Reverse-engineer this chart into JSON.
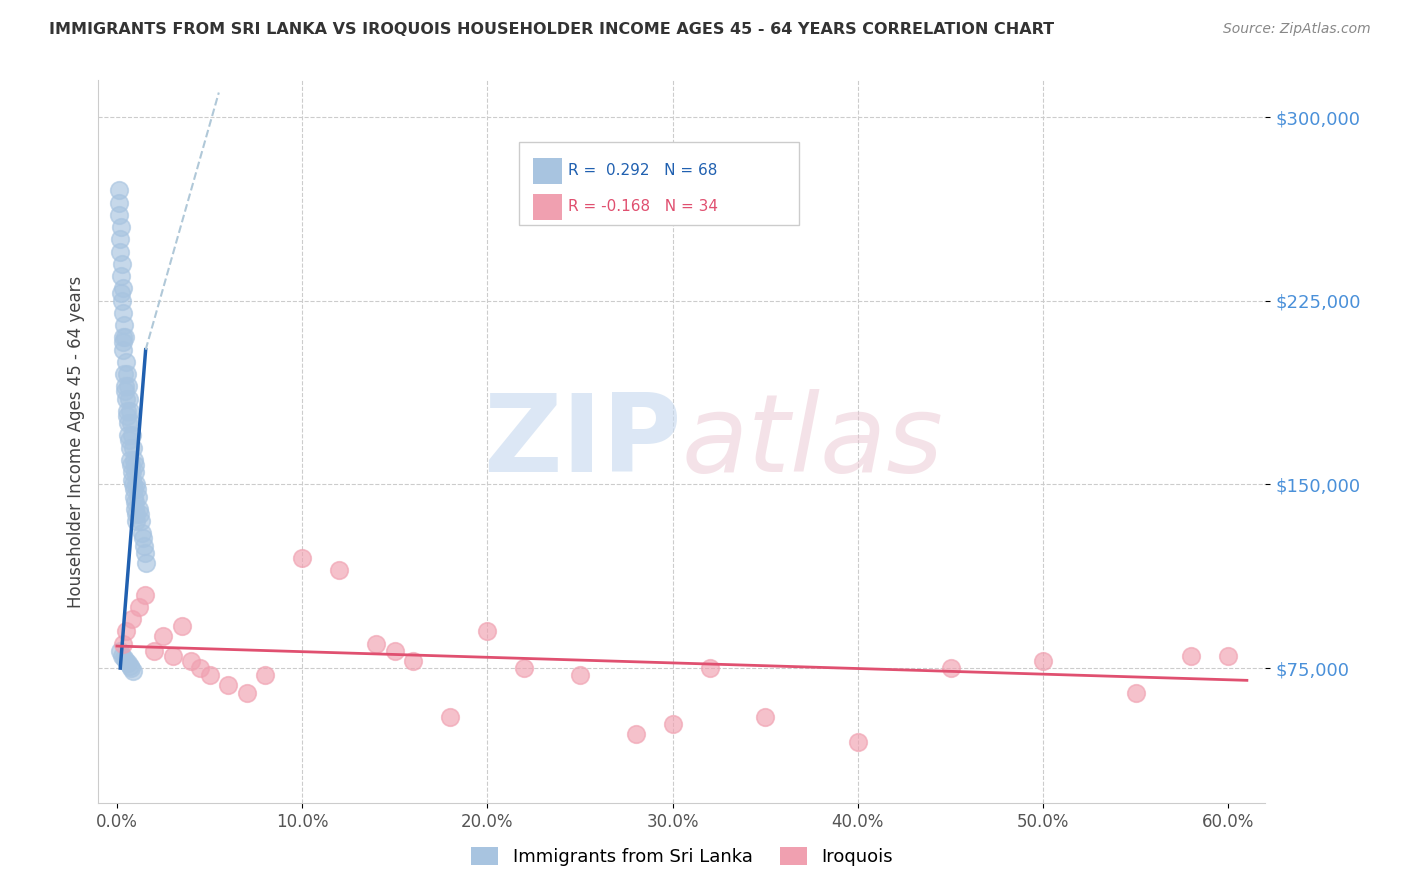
{
  "title": "IMMIGRANTS FROM SRI LANKA VS IROQUOIS HOUSEHOLDER INCOME AGES 45 - 64 YEARS CORRELATION CHART",
  "source": "Source: ZipAtlas.com",
  "ylabel": "Householder Income Ages 45 - 64 years",
  "xlabel_ticks": [
    "0.0%",
    "10.0%",
    "20.0%",
    "30.0%",
    "40.0%",
    "50.0%",
    "60.0%"
  ],
  "xlabel_vals": [
    0.0,
    10.0,
    20.0,
    30.0,
    40.0,
    50.0,
    60.0
  ],
  "yticks": [
    75000,
    150000,
    225000,
    300000
  ],
  "ytick_labels": [
    "$75,000",
    "$150,000",
    "$225,000",
    "$300,000"
  ],
  "xlim": [
    -1.0,
    62.0
  ],
  "ylim": [
    20000,
    315000
  ],
  "blue_R": 0.292,
  "blue_N": 68,
  "pink_R": -0.168,
  "pink_N": 34,
  "blue_color": "#a8c4e0",
  "blue_line_color": "#2060b0",
  "blue_dashed_color": "#a8c4e0",
  "pink_color": "#f0a0b0",
  "pink_line_color": "#e05070",
  "blue_scatter_x": [
    0.1,
    0.15,
    0.2,
    0.25,
    0.3,
    0.35,
    0.4,
    0.45,
    0.5,
    0.55,
    0.6,
    0.65,
    0.7,
    0.75,
    0.8,
    0.85,
    0.9,
    0.95,
    1.0,
    1.05,
    1.1,
    1.15,
    1.2,
    1.25,
    1.3,
    1.35,
    1.4,
    1.45,
    1.5,
    1.55,
    0.1,
    0.2,
    0.3,
    0.4,
    0.5,
    0.6,
    0.7,
    0.8,
    0.9,
    1.0,
    0.15,
    0.25,
    0.35,
    0.45,
    0.55,
    0.65,
    0.75,
    0.85,
    0.95,
    1.05,
    0.12,
    0.22,
    0.32,
    0.42,
    0.52,
    0.62,
    0.72,
    0.82,
    0.92,
    1.02,
    0.18,
    0.28,
    0.38,
    0.48,
    0.58,
    0.68,
    0.78,
    0.88
  ],
  "blue_scatter_y": [
    265000,
    245000,
    255000,
    240000,
    230000,
    220000,
    215000,
    210000,
    200000,
    195000,
    190000,
    185000,
    180000,
    175000,
    170000,
    165000,
    160000,
    158000,
    155000,
    150000,
    148000,
    145000,
    140000,
    138000,
    135000,
    130000,
    128000,
    125000,
    122000,
    118000,
    270000,
    235000,
    210000,
    195000,
    185000,
    175000,
    165000,
    155000,
    148000,
    140000,
    250000,
    225000,
    205000,
    188000,
    178000,
    168000,
    158000,
    150000,
    143000,
    135000,
    260000,
    228000,
    208000,
    190000,
    180000,
    170000,
    160000,
    152000,
    145000,
    138000,
    82000,
    80000,
    79000,
    78000,
    77000,
    76000,
    75000,
    74000
  ],
  "pink_scatter_x": [
    0.3,
    0.5,
    0.8,
    1.2,
    1.5,
    2.0,
    2.5,
    3.0,
    3.5,
    4.0,
    4.5,
    5.0,
    6.0,
    7.0,
    8.0,
    10.0,
    12.0,
    14.0,
    15.0,
    16.0,
    18.0,
    20.0,
    22.0,
    25.0,
    28.0,
    30.0,
    32.0,
    35.0,
    40.0,
    45.0,
    50.0,
    55.0,
    58.0,
    60.0
  ],
  "pink_scatter_y": [
    85000,
    90000,
    95000,
    100000,
    105000,
    82000,
    88000,
    80000,
    92000,
    78000,
    75000,
    72000,
    68000,
    65000,
    72000,
    120000,
    115000,
    85000,
    82000,
    78000,
    55000,
    90000,
    75000,
    72000,
    48000,
    52000,
    75000,
    55000,
    45000,
    75000,
    78000,
    65000,
    80000,
    80000
  ]
}
